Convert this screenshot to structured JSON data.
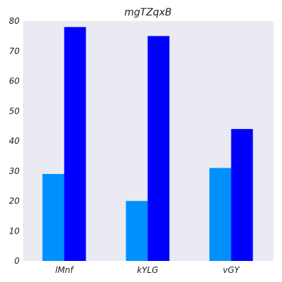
{
  "chart_data": {
    "type": "bar",
    "title": "mgTZqxB",
    "xlabel": "",
    "ylabel": "",
    "categories": [
      "lMnf",
      "kYLG",
      "vGY"
    ],
    "series": [
      {
        "values": [
          29,
          20,
          31
        ],
        "color": "#0091ff"
      },
      {
        "values": [
          78,
          75,
          44
        ],
        "color": "#0000ff"
      }
    ],
    "ylim": [
      0,
      80
    ],
    "yticks": [
      0,
      10,
      20,
      30,
      40,
      50,
      60,
      70,
      80
    ],
    "grid": false,
    "background": "#eaeaf2"
  }
}
